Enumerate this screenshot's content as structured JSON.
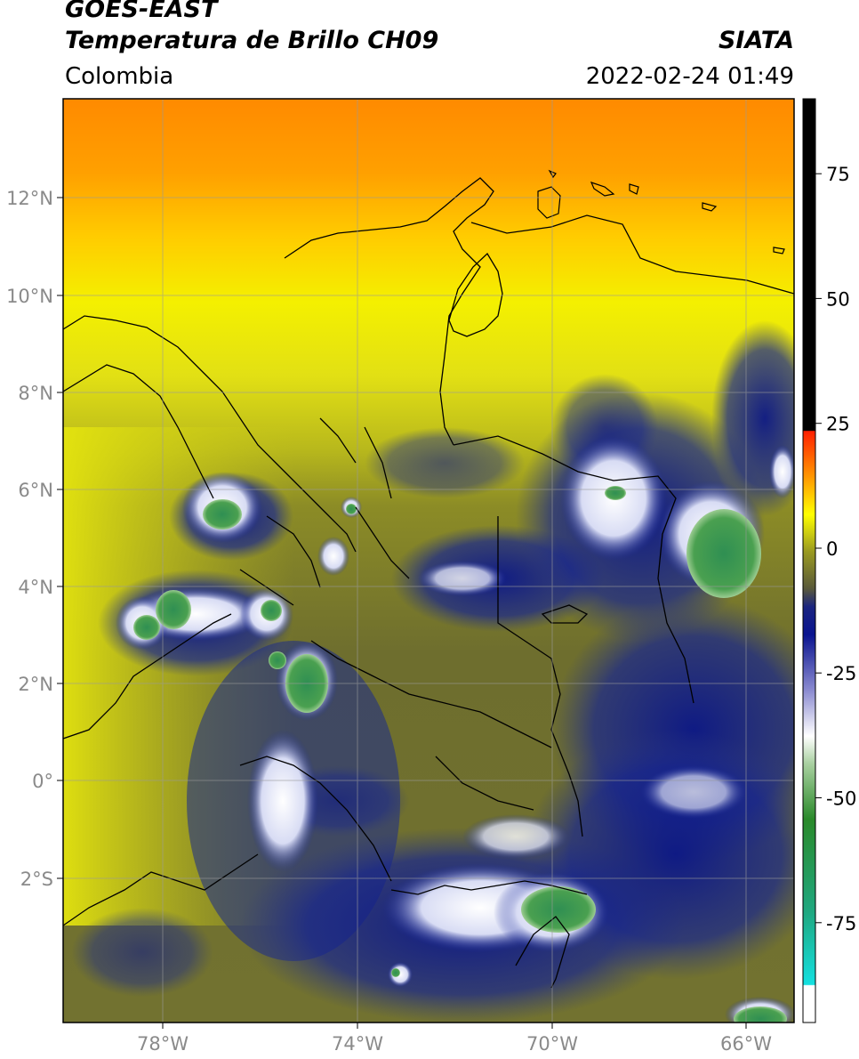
{
  "header": {
    "title_line1": "GOES-EAST",
    "title_line2": "Temperatura de Brillo CH09",
    "region": "Colombia",
    "agency": "SIATA",
    "datetime": "2022-02-24 01:49"
  },
  "map": {
    "lat_ticks": [
      "12°N",
      "10°N",
      "8°N",
      "6°N",
      "4°N",
      "2°N",
      "0°",
      "2°S"
    ],
    "lon_ticks": [
      "78°W",
      "74°W",
      "70°W",
      "66°W"
    ]
  },
  "colorbar": {
    "ticks": [
      "75",
      "50",
      "25",
      "0",
      "-25",
      "-50",
      "-75"
    ],
    "tick_values": [
      75,
      50,
      25,
      0,
      -25,
      -50,
      -75
    ],
    "range": [
      -95,
      90
    ]
  },
  "colors": {
    "warm_orange": "#ff8c00",
    "yellow": "#f2f200",
    "olive": "#9a9a1e",
    "navy": "#0c1a8c",
    "white": "#ffffff",
    "green": "#3e9a4a",
    "cyan": "#14d6d6",
    "red": "#ff1a00",
    "black": "#000000"
  }
}
